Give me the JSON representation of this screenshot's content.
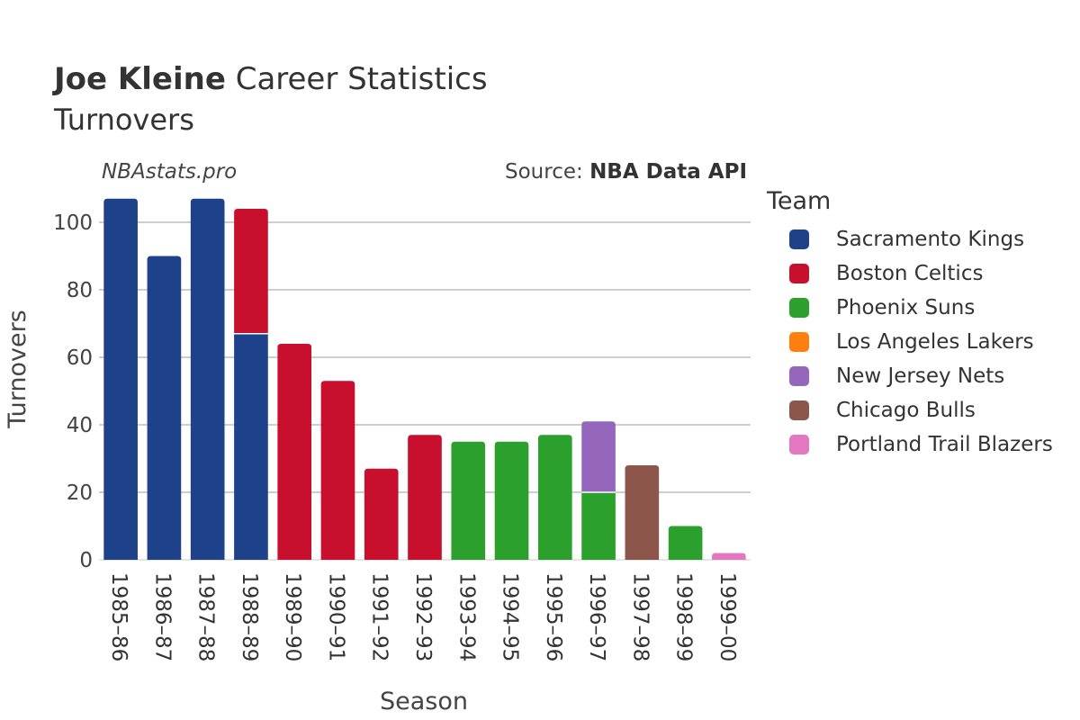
{
  "title": {
    "player": "Joe Kleine",
    "rest": "Career Statistics",
    "subtitle": "Turnovers"
  },
  "watermark": "NBAstats.pro",
  "source": {
    "prefix": "Source: ",
    "name": "NBA Data API"
  },
  "legend": {
    "title": "Team"
  },
  "teams": [
    {
      "name": "Sacramento Kings",
      "color": "#1d428a"
    },
    {
      "name": "Boston Celtics",
      "color": "#c8102e"
    },
    {
      "name": "Phoenix Suns",
      "color": "#2ca02c"
    },
    {
      "name": "Los Angeles Lakers",
      "color": "#ff7f0e"
    },
    {
      "name": "New Jersey Nets",
      "color": "#9467bd"
    },
    {
      "name": "Chicago Bulls",
      "color": "#8c564b"
    },
    {
      "name": "Portland Trail Blazers",
      "color": "#e377c2"
    }
  ],
  "chart_data": {
    "type": "bar",
    "stacked": true,
    "xlabel": "Season",
    "ylabel": "Turnovers",
    "ylim": [
      0,
      110
    ],
    "yticks": [
      0,
      20,
      40,
      60,
      80,
      100
    ],
    "grid": true,
    "legend_position": "right",
    "categories": [
      "1985–86",
      "1986–87",
      "1987–88",
      "1988–89",
      "1989–90",
      "1990–91",
      "1991–92",
      "1992–93",
      "1993–94",
      "1994–95",
      "1995–96",
      "1996–97",
      "1997–98",
      "1998–99",
      "1999–00"
    ],
    "series": [
      {
        "name": "Sacramento Kings",
        "values": [
          107,
          90,
          107,
          67,
          0,
          0,
          0,
          0,
          0,
          0,
          0,
          0,
          0,
          0,
          0
        ]
      },
      {
        "name": "Boston Celtics",
        "values": [
          0,
          0,
          0,
          37,
          64,
          53,
          27,
          37,
          0,
          0,
          0,
          0,
          0,
          0,
          0
        ]
      },
      {
        "name": "Phoenix Suns",
        "values": [
          0,
          0,
          0,
          0,
          0,
          0,
          0,
          0,
          35,
          35,
          37,
          20,
          0,
          10,
          0
        ]
      },
      {
        "name": "Los Angeles Lakers",
        "values": [
          0,
          0,
          0,
          0,
          0,
          0,
          0,
          0,
          0,
          0,
          0,
          0,
          0,
          0,
          0
        ]
      },
      {
        "name": "New Jersey Nets",
        "values": [
          0,
          0,
          0,
          0,
          0,
          0,
          0,
          0,
          0,
          0,
          0,
          21,
          0,
          0,
          0
        ]
      },
      {
        "name": "Chicago Bulls",
        "values": [
          0,
          0,
          0,
          0,
          0,
          0,
          0,
          0,
          0,
          0,
          0,
          0,
          28,
          0,
          0
        ]
      },
      {
        "name": "Portland Trail Blazers",
        "values": [
          0,
          0,
          0,
          0,
          0,
          0,
          0,
          0,
          0,
          0,
          0,
          0,
          0,
          0,
          2
        ]
      }
    ]
  }
}
